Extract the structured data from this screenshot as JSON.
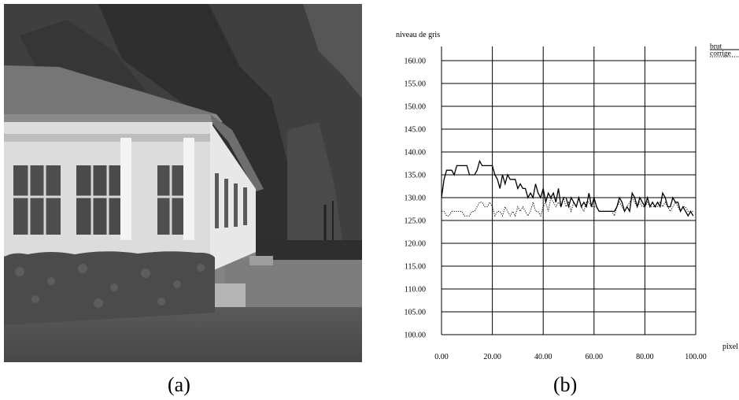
{
  "figure": {
    "caption_a": "(a)",
    "caption_b": "(b)"
  },
  "chart_data": {
    "type": "line",
    "xlabel": "pixel",
    "ylabel": "niveau de gris",
    "xlim": [
      0,
      100
    ],
    "ylim": [
      100,
      160
    ],
    "grid": true,
    "legend_placement": "top-right",
    "x_ticks": [
      "0.00",
      "20.00",
      "40.00",
      "60.00",
      "80.00",
      "100.00"
    ],
    "y_ticks": [
      "100.00",
      "105.00",
      "110.00",
      "115.00",
      "120.00",
      "125.00",
      "130.00",
      "135.00",
      "140.00",
      "145.00",
      "150.00",
      "155.00",
      "160.00"
    ],
    "series": [
      {
        "name": "brut",
        "style": "solid",
        "x": [
          0,
          1,
          2,
          3,
          4,
          5,
          6,
          7,
          8,
          9,
          10,
          11,
          12,
          13,
          14,
          15,
          16,
          17,
          18,
          19,
          20,
          21,
          22,
          23,
          24,
          25,
          26,
          27,
          28,
          29,
          30,
          31,
          32,
          33,
          34,
          35,
          36,
          37,
          38,
          39,
          40,
          41,
          42,
          43,
          44,
          45,
          46,
          47,
          48,
          49,
          50,
          51,
          52,
          53,
          54,
          55,
          56,
          57,
          58,
          59,
          60,
          61,
          62,
          63,
          64,
          65,
          66,
          67,
          68,
          69,
          70,
          71,
          72,
          73,
          74,
          75,
          76,
          77,
          78,
          79,
          80,
          81,
          82,
          83,
          84,
          85,
          86,
          87,
          88,
          89,
          90,
          91,
          92,
          93,
          94,
          95,
          96,
          97,
          98,
          99
        ],
        "values": [
          130,
          134,
          136,
          136,
          136,
          135,
          137,
          137,
          137,
          137,
          137,
          135,
          135,
          135,
          136,
          138,
          137,
          137,
          137,
          137,
          137,
          135,
          134,
          132,
          135,
          133,
          135,
          134,
          134,
          134,
          132,
          133,
          132,
          132,
          130,
          131,
          130,
          133,
          131,
          130,
          132,
          129,
          131,
          130,
          131,
          129,
          132,
          128,
          130,
          130,
          128,
          130,
          129,
          128,
          130,
          128,
          129,
          128,
          131,
          128,
          130,
          128,
          127,
          127,
          127,
          127,
          127,
          127,
          127,
          128,
          130,
          129,
          127,
          128,
          127,
          131,
          130,
          128,
          130,
          129,
          128,
          130,
          128,
          129,
          128,
          129,
          128,
          131,
          130,
          128,
          128,
          130,
          129,
          129,
          127,
          128,
          127,
          126,
          127,
          126
        ]
      },
      {
        "name": "corrige",
        "style": "dotted",
        "x": [
          0,
          1,
          2,
          3,
          4,
          5,
          6,
          7,
          8,
          9,
          10,
          11,
          12,
          13,
          14,
          15,
          16,
          17,
          18,
          19,
          20,
          21,
          22,
          23,
          24,
          25,
          26,
          27,
          28,
          29,
          30,
          31,
          32,
          33,
          34,
          35,
          36,
          37,
          38,
          39,
          40,
          41,
          42,
          43,
          44,
          45,
          46,
          47,
          48,
          49,
          50,
          51,
          52,
          53,
          54,
          55,
          56,
          57,
          58,
          59,
          60,
          61,
          62,
          63,
          64,
          65,
          66,
          67,
          68,
          69,
          70,
          71,
          72,
          73,
          74,
          75,
          76,
          77,
          78,
          79,
          80,
          81,
          82,
          83,
          84,
          85,
          86,
          87,
          88,
          89,
          90,
          91,
          92,
          93,
          94,
          95,
          96,
          97,
          98,
          99
        ],
        "values": [
          127,
          127,
          126,
          126,
          127,
          127,
          127,
          127,
          127,
          126,
          126,
          126,
          127,
          127,
          128,
          129,
          129,
          128,
          128,
          129,
          128,
          126,
          127,
          127,
          126,
          128,
          127,
          126,
          127,
          126,
          128,
          127,
          128,
          127,
          126,
          127,
          129,
          127,
          127,
          126,
          128,
          129,
          127,
          130,
          129,
          128,
          129,
          128,
          130,
          128,
          129,
          127,
          129,
          128,
          130,
          128,
          127,
          129,
          129,
          128,
          128,
          128,
          127,
          127,
          127,
          127,
          127,
          127,
          126,
          128,
          129,
          128,
          127,
          128,
          129,
          130,
          129,
          128,
          129,
          128,
          128,
          129,
          128,
          128,
          128,
          128,
          129,
          128,
          129,
          128,
          127,
          128,
          129,
          128,
          127,
          128,
          128,
          127,
          127,
          127
        ]
      }
    ]
  }
}
